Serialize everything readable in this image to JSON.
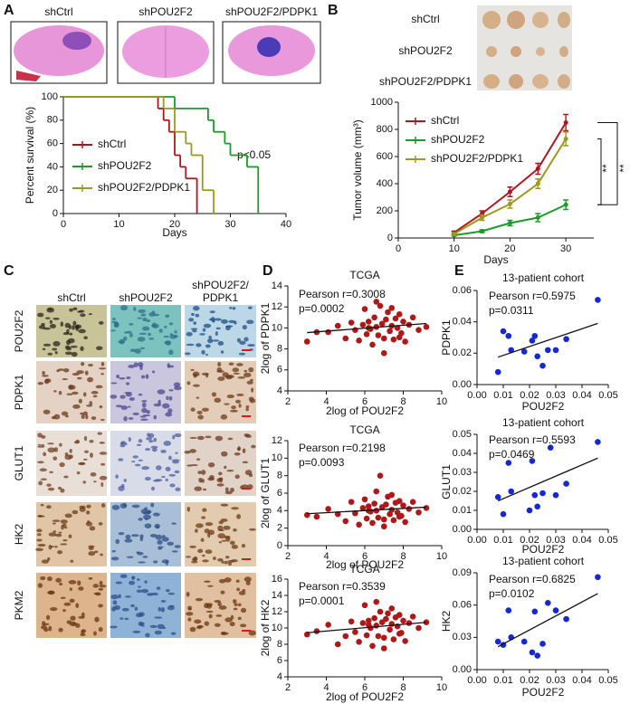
{
  "panels": {
    "A": {
      "label": "A",
      "images": [
        "shCtrl",
        "shPOU2F2",
        "shPOU2F2/PDPK1"
      ]
    },
    "B": {
      "label": "B",
      "photo_rows": [
        "shCtrl",
        "shPOU2F2",
        "shPOU2F2/PDPK1"
      ]
    },
    "C": {
      "label": "C",
      "column_header_lines": [
        [
          "shCtrl"
        ],
        [
          "shPOU2F2"
        ],
        [
          "shPOU2F2/",
          "PDPK1"
        ]
      ],
      "rows": [
        "POU2F2",
        "PDPK1",
        "GLUT1",
        "HK2",
        "PKM2"
      ]
    },
    "D": {
      "label": "D"
    },
    "E": {
      "label": "E"
    }
  },
  "chart_data": [
    {
      "type": "step",
      "xlabel": "Days",
      "ylabel": "Percent survival (%)",
      "xlim": [
        0,
        40
      ],
      "xticks": [
        0,
        10,
        20,
        30,
        40
      ],
      "ylim": [
        0,
        100
      ],
      "yticks": [
        0,
        20,
        40,
        60,
        80,
        100
      ],
      "series": [
        {
          "name": "shCtrl",
          "color": "#b0151c",
          "x": [
            0,
            17,
            18,
            19,
            20,
            21,
            22,
            24
          ],
          "values": [
            100,
            90,
            80,
            70,
            50,
            40,
            30,
            0
          ]
        },
        {
          "name": "shPOU2F2",
          "color": "#1e9a2c",
          "x": [
            0,
            20,
            26,
            27,
            29,
            30,
            33,
            35
          ],
          "values": [
            100,
            90,
            80,
            70,
            60,
            50,
            40,
            0
          ]
        },
        {
          "name": "shPOU2F2/PDPK1",
          "color": "#9c9a1e",
          "x": [
            0,
            18,
            20,
            22,
            23,
            25,
            27
          ],
          "values": [
            100,
            90,
            70,
            60,
            50,
            20,
            0
          ]
        }
      ],
      "annotations": [
        "p<0.05"
      ]
    },
    {
      "type": "line",
      "xlabel": "Days",
      "ylabel": "Tumor volume (mm³)",
      "xlim": [
        0,
        35
      ],
      "xticks": [
        0,
        10,
        20,
        30
      ],
      "ylim": [
        0,
        1000
      ],
      "yticks": [
        0,
        200,
        400,
        600,
        800,
        1000
      ],
      "x": [
        10,
        15,
        20,
        25,
        30
      ],
      "series": [
        {
          "name": "shCtrl",
          "color": "#b0151c",
          "values": [
            40,
            180,
            340,
            510,
            850
          ],
          "errors": [
            10,
            20,
            35,
            40,
            60
          ]
        },
        {
          "name": "shPOU2F2",
          "color": "#1e9a2c",
          "values": [
            20,
            50,
            110,
            150,
            245
          ],
          "errors": [
            5,
            10,
            20,
            30,
            35
          ]
        },
        {
          "name": "shPOU2F2/PDPK1",
          "color": "#9c9a1e",
          "values": [
            30,
            150,
            250,
            400,
            730
          ],
          "errors": [
            8,
            20,
            30,
            35,
            50
          ]
        }
      ],
      "annotations": [
        "**",
        "**"
      ]
    },
    {
      "type": "scatter",
      "title": "TCGA",
      "xlabel": "2log of POU2F2",
      "ylabel": "2log of PDPK1",
      "color": "#b01818",
      "annotations": [
        "Pearson r=0.3008",
        "p=0.0002"
      ],
      "xlim": [
        2,
        10
      ],
      "xticks": [
        2,
        4,
        6,
        8,
        10
      ],
      "ylim": [
        4,
        14
      ],
      "yticks": [
        4,
        6,
        8,
        10,
        12,
        14
      ],
      "x": [
        3.0,
        3.5,
        4.1,
        4.6,
        5.0,
        5.3,
        5.5,
        5.7,
        5.9,
        6.0,
        6.1,
        6.2,
        6.3,
        6.4,
        6.5,
        6.6,
        6.7,
        6.8,
        6.9,
        7.0,
        7.1,
        7.2,
        7.3,
        7.4,
        7.5,
        7.6,
        7.7,
        7.8,
        7.9,
        8.0,
        8.1,
        8.3,
        8.5,
        8.8,
        9.2,
        6.6,
        7.0,
        7.4,
        7.8,
        6.2
      ],
      "values": [
        8.7,
        9.6,
        9.6,
        10.2,
        9.0,
        10.5,
        9.8,
        8.8,
        10.3,
        11.8,
        9.4,
        10.6,
        9.9,
        8.4,
        11.0,
        10.1,
        9.3,
        12.1,
        10.4,
        9.0,
        10.8,
        11.5,
        9.7,
        10.2,
        8.9,
        10.9,
        10.0,
        11.3,
        9.5,
        10.6,
        8.7,
        10.3,
        11.0,
        9.8,
        10.1,
        12.5,
        7.6,
        11.9,
        9.1,
        10.0
      ]
    },
    {
      "type": "scatter",
      "title": "TCGA",
      "xlabel": "2log of POU2F2",
      "ylabel": "2log of GLUT1",
      "color": "#b01818",
      "annotations": [
        "Pearson r=0.2198",
        "p=0.0093"
      ],
      "xlim": [
        2,
        10
      ],
      "xticks": [
        2,
        4,
        6,
        8,
        10
      ],
      "ylim": [
        0,
        12
      ],
      "yticks": [
        0,
        2,
        4,
        6,
        8,
        10,
        12
      ],
      "x": [
        3.0,
        3.5,
        4.1,
        4.6,
        5.0,
        5.3,
        5.5,
        5.7,
        5.9,
        6.0,
        6.1,
        6.2,
        6.3,
        6.4,
        6.5,
        6.6,
        6.7,
        6.8,
        6.9,
        7.0,
        7.1,
        7.2,
        7.3,
        7.4,
        7.5,
        7.6,
        7.7,
        7.8,
        7.9,
        8.0,
        8.1,
        8.3,
        8.5,
        8.8,
        9.2,
        6.6,
        7.0,
        7.4,
        7.8,
        6.2
      ],
      "values": [
        3.5,
        3.3,
        4.2,
        3.6,
        2.8,
        5.0,
        3.7,
        2.4,
        4.3,
        5.3,
        3.1,
        4.5,
        3.9,
        2.6,
        4.8,
        4.0,
        3.2,
        8.0,
        4.4,
        3.0,
        4.7,
        5.6,
        3.6,
        4.1,
        2.9,
        4.9,
        3.8,
        5.1,
        3.4,
        4.6,
        2.7,
        4.2,
        5.0,
        3.8,
        4.3,
        6.2,
        2.2,
        5.8,
        3.3,
        4.0
      ]
    },
    {
      "type": "scatter",
      "title": "TCGA",
      "xlabel": "2log of POU2F2",
      "ylabel": "2log of HK2",
      "color": "#b01818",
      "annotations": [
        "Pearson r=0.3539",
        "p=0.0001"
      ],
      "xlim": [
        2,
        10
      ],
      "xticks": [
        2,
        4,
        6,
        8,
        10
      ],
      "ylim": [
        4,
        16
      ],
      "yticks": [
        4,
        6,
        8,
        10,
        12,
        14,
        16
      ],
      "x": [
        3.0,
        3.5,
        4.1,
        4.6,
        5.0,
        5.3,
        5.5,
        5.7,
        5.9,
        6.0,
        6.1,
        6.2,
        6.3,
        6.4,
        6.5,
        6.6,
        6.7,
        6.8,
        6.9,
        7.0,
        7.1,
        7.2,
        7.3,
        7.4,
        7.5,
        7.6,
        7.7,
        7.8,
        7.9,
        8.0,
        8.1,
        8.3,
        8.5,
        8.8,
        9.2,
        6.6,
        7.0,
        7.4,
        7.8,
        6.2
      ],
      "values": [
        9.2,
        9.6,
        10.4,
        8.0,
        9.0,
        10.8,
        9.5,
        8.3,
        10.6,
        12.8,
        9.1,
        10.9,
        10.0,
        7.8,
        11.2,
        10.3,
        9.0,
        12.0,
        10.7,
        8.8,
        11.1,
        11.8,
        9.8,
        10.5,
        8.6,
        11.3,
        10.2,
        11.6,
        9.4,
        10.9,
        8.4,
        10.6,
        11.4,
        10.0,
        10.7,
        13.2,
        7.5,
        12.4,
        9.3,
        10.4
      ]
    },
    {
      "type": "scatter",
      "title": "13-patient cohort",
      "xlabel": "POU2F2",
      "ylabel": "PDPK1",
      "color": "#1428d8",
      "annotations": [
        "Pearson r=0.5975",
        "p=0.0311"
      ],
      "xlim": [
        0,
        0.05
      ],
      "xticks": [
        {
          "value": 0,
          "label": "0.00"
        },
        0.01,
        0.02,
        0.03,
        0.04,
        0.05
      ],
      "ylim": [
        0,
        0.06
      ],
      "yticks": [
        {
          "value": 0,
          "label": "0.00"
        },
        0.02,
        0.04,
        0.06
      ],
      "x": [
        0.008,
        0.01,
        0.012,
        0.013,
        0.018,
        0.021,
        0.022,
        0.023,
        0.025,
        0.027,
        0.03,
        0.034,
        0.046
      ],
      "values": [
        0.008,
        0.034,
        0.031,
        0.022,
        0.021,
        0.028,
        0.031,
        0.018,
        0.012,
        0.022,
        0.022,
        0.029,
        0.054
      ]
    },
    {
      "type": "scatter",
      "title": "13-patient cohort",
      "xlabel": "POU2F2",
      "ylabel": "GLUT1",
      "color": "#1428d8",
      "annotations": [
        "Pearson r=0.5593",
        "p=0.0469"
      ],
      "xlim": [
        0,
        0.05
      ],
      "xticks": [
        {
          "value": 0,
          "label": "0.00"
        },
        0.01,
        0.02,
        0.03,
        0.04,
        0.05
      ],
      "ylim": [
        0,
        0.05
      ],
      "yticks": [
        {
          "value": 0,
          "label": "0.00"
        },
        0.01,
        0.02,
        0.03,
        0.04,
        0.05
      ],
      "x": [
        0.008,
        0.01,
        0.012,
        0.013,
        0.02,
        0.021,
        0.022,
        0.023,
        0.025,
        0.028,
        0.03,
        0.034,
        0.046
      ],
      "values": [
        0.017,
        0.008,
        0.035,
        0.02,
        0.01,
        0.036,
        0.018,
        0.012,
        0.019,
        0.043,
        0.018,
        0.024,
        0.046
      ]
    },
    {
      "type": "scatter",
      "title": "13-patient cohort",
      "xlabel": "POU2F2",
      "ylabel": "HK2",
      "color": "#1428d8",
      "annotations": [
        "Pearson r=0.6825",
        "p=0.0102"
      ],
      "xlim": [
        0,
        0.05
      ],
      "xticks": [
        {
          "value": 0,
          "label": "0.00"
        },
        0.01,
        0.02,
        0.03,
        0.04,
        0.05
      ],
      "ylim": [
        0,
        0.09
      ],
      "yticks": [
        {
          "value": 0,
          "label": "0.00"
        },
        0.03,
        0.06,
        0.09
      ],
      "x": [
        0.008,
        0.01,
        0.012,
        0.013,
        0.018,
        0.021,
        0.022,
        0.023,
        0.025,
        0.027,
        0.03,
        0.034,
        0.046
      ],
      "values": [
        0.026,
        0.023,
        0.055,
        0.03,
        0.026,
        0.016,
        0.054,
        0.013,
        0.024,
        0.062,
        0.055,
        0.047,
        0.086
      ]
    }
  ]
}
